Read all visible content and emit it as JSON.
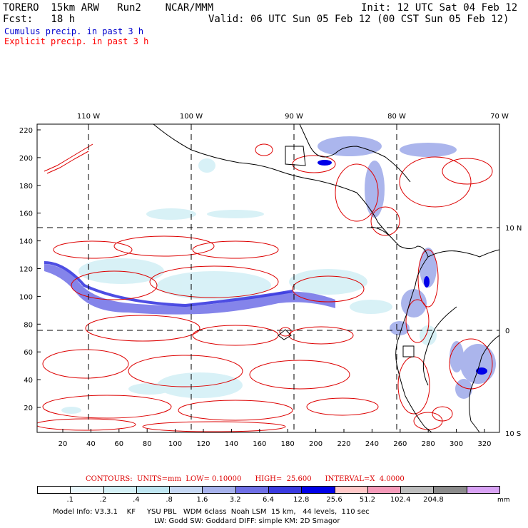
{
  "header": {
    "model": "TORERO  15km ARW   Run2    NCAR/MMM",
    "init": "Init: 12 UTC Sat 04 Feb 12",
    "fcst": "Fcst:   18 h",
    "valid": "Valid: 06 UTC Sun 05 Feb 12 (00 CST Sun 05 Feb 12)",
    "field1": "Cumulus precip. in past 3 h",
    "field2": "Explicit precip. in past 3 h"
  },
  "colors": {
    "field1": "#0000cc",
    "field2": "#ff0000",
    "contour": "#dd0000",
    "coast": "#000000"
  },
  "top_axis": [
    "110 W",
    "100 W",
    "90 W",
    "80 W",
    "70 W"
  ],
  "right_axis": [
    "10 N",
    "0",
    "10 S"
  ],
  "left_ticks": [
    "20",
    "40",
    "60",
    "80",
    "100",
    "120",
    "140",
    "160",
    "180",
    "200",
    "220"
  ],
  "bottom_ticks": [
    "20",
    "40",
    "60",
    "80",
    "100",
    "120",
    "140",
    "160",
    "180",
    "200",
    "220",
    "240",
    "260",
    "280",
    "300",
    "320"
  ],
  "contour_info": "CONTOURS:  UNITS=mm  LOW= 0.10000      HIGH=  25.600      INTERVAL=X  4.0000",
  "legend": {
    "labels": [
      ".1",
      ".2",
      ".4",
      ".8",
      "1.6",
      "3.2",
      "6.4",
      "12.8",
      "25.6",
      "51.2",
      "102.4",
      "204.8"
    ],
    "colors": [
      "#ffffff",
      "#eaf7fb",
      "#d4f0f6",
      "#bfe6f2",
      "#c6d8f4",
      "#a7b2ec",
      "#6f6fe6",
      "#3a3ae0",
      "#0000e8",
      "#ffc8c8",
      "#f59ab9",
      "#bdbdbd",
      "#8b8b8b",
      "#d9a3f5"
    ],
    "units": "mm"
  },
  "footer": {
    "line1": "Model Info: V3.3.1    KF     YSU PBL   WDM 6class  Noah LSM  15 km,   44 levels,  110 sec",
    "line2": "LW: Godd SW: Goddard DIFF: simple KM: 2D Smagor"
  }
}
